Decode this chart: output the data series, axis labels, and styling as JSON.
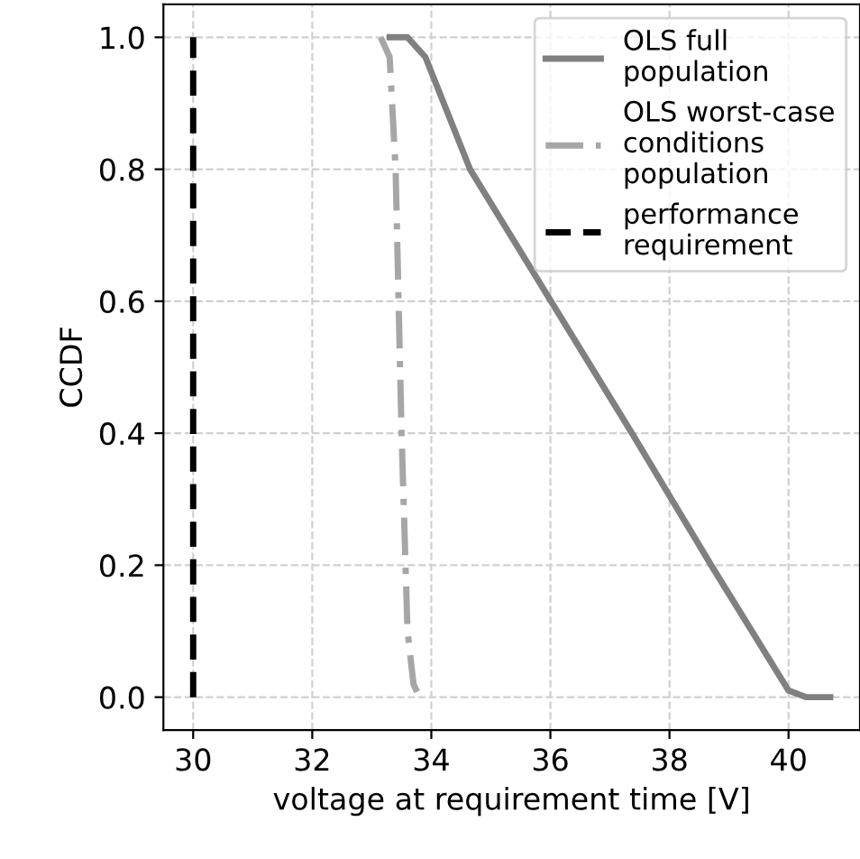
{
  "chart_data": {
    "type": "line",
    "xlabel": "voltage at requirement time [V]",
    "ylabel": "CCDF",
    "xlim": [
      29.5,
      41.2
    ],
    "ylim": [
      -0.05,
      1.05
    ],
    "xticks": [
      30,
      32,
      34,
      36,
      38,
      40
    ],
    "yticks": [
      {
        "value": 0,
        "label": "0.0"
      },
      {
        "value": 0.2,
        "label": "0.2"
      },
      {
        "value": 0.4,
        "label": "0.4"
      },
      {
        "value": 0.6,
        "label": "0.6"
      },
      {
        "value": 0.8,
        "label": "0.8"
      },
      {
        "value": 1,
        "label": "1.0"
      }
    ],
    "grid": true,
    "legend": "top right",
    "marker": "none",
    "series": [
      {
        "name": "OLS full\npopulation",
        "color": "#808080",
        "line_style": "solid",
        "x": [
          33.3,
          33.6,
          33.9,
          34.65,
          37.37,
          38.7,
          40.0,
          40.3,
          40.7
        ],
        "values": [
          1.0,
          1.0,
          0.97,
          0.8,
          0.4,
          0.2,
          0.01,
          0.0,
          0.0
        ]
      },
      {
        "name": "OLS worst-case\nconditions\npopulation",
        "color": "#a6a6a6",
        "line_style": "dashdot",
        "x": [
          33.15,
          33.3,
          33.4,
          33.5,
          33.6,
          33.7,
          33.8
        ],
        "values": [
          1.0,
          0.97,
          0.8,
          0.4,
          0.1,
          0.02,
          0.0
        ]
      },
      {
        "name": "performance\nrequirement",
        "color": "#000000",
        "line_style": "dashed",
        "x": [
          30,
          30
        ],
        "values": [
          0,
          1
        ]
      }
    ]
  }
}
